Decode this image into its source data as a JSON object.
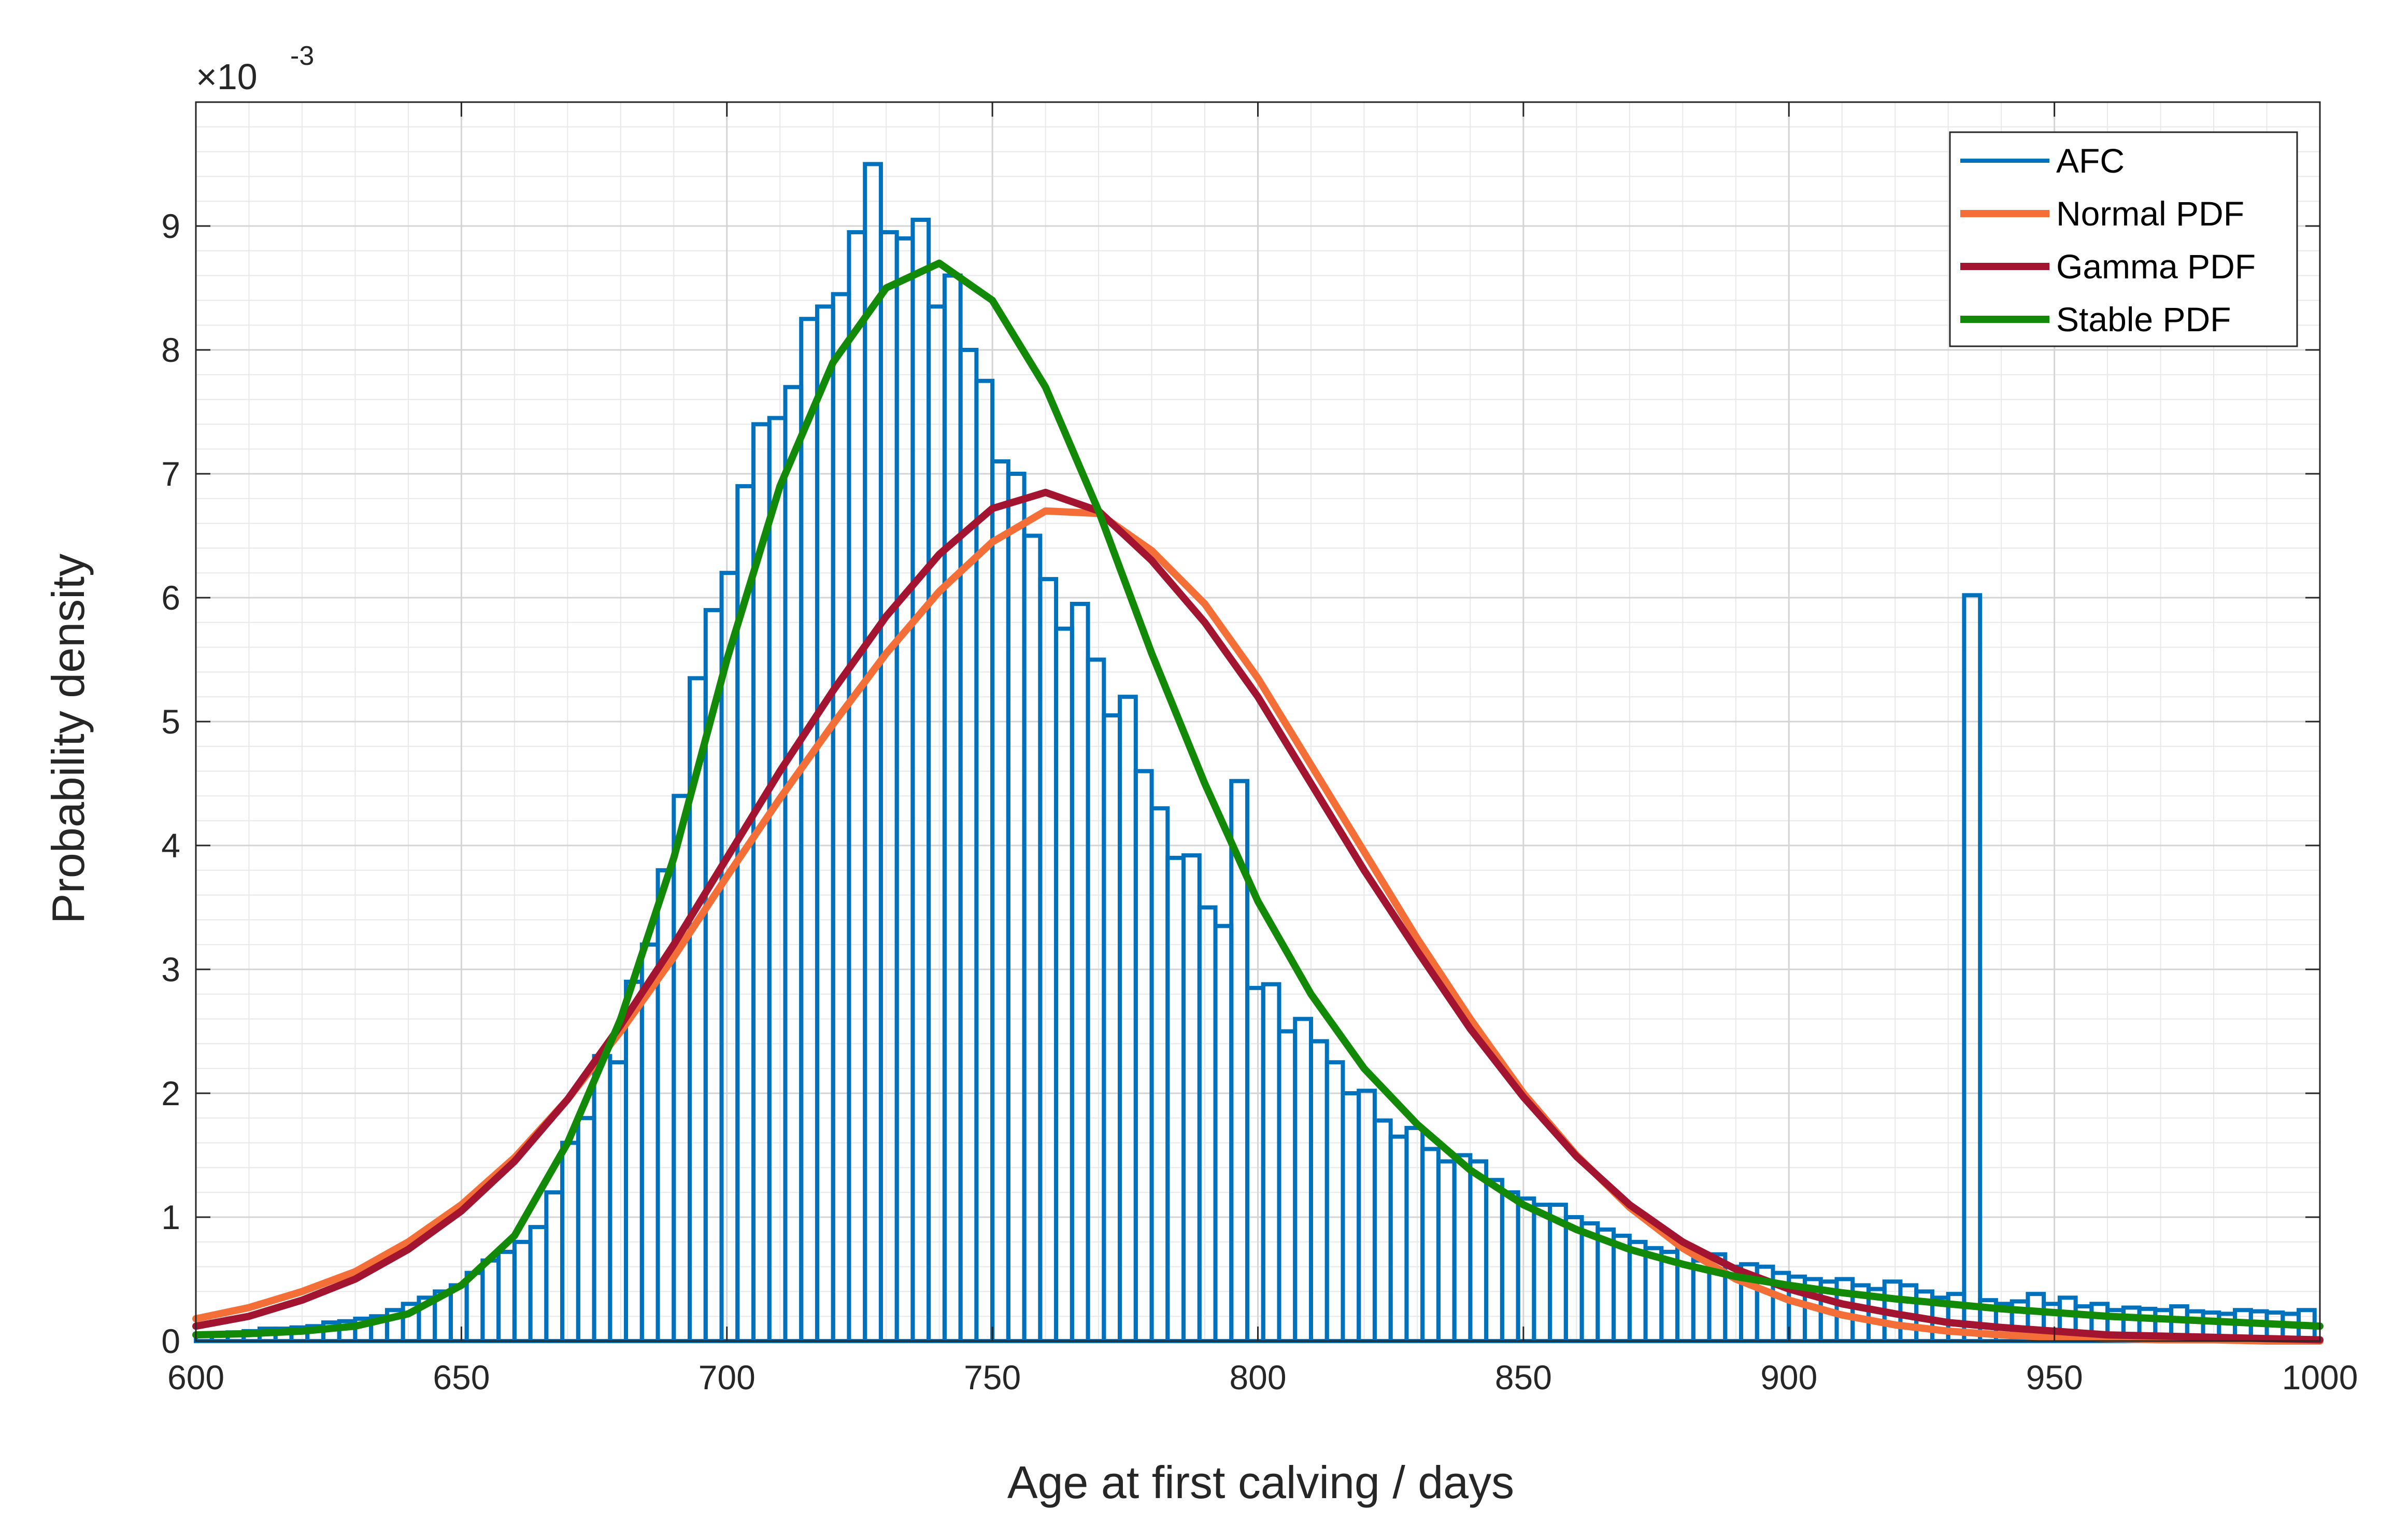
{
  "chart_data": {
    "type": "bar",
    "xlabel": "Age at first calving / days",
    "ylabel": "Probability density",
    "y_exponent": {
      "base": "×10",
      "power": "-3"
    },
    "xlim": [
      600,
      1000
    ],
    "ylim": [
      0,
      10
    ],
    "x_ticks": [
      600,
      650,
      700,
      750,
      800,
      850,
      900,
      950,
      1000
    ],
    "y_ticks": [
      0,
      1,
      2,
      3,
      4,
      5,
      6,
      7,
      8,
      9
    ],
    "grid": "major and minor",
    "legend_location": "top-right",
    "histogram": {
      "name": "AFC",
      "color": "#0072BD",
      "bin_start": 600,
      "bin_width": 3,
      "values": [
        0.05,
        0.06,
        0.07,
        0.08,
        0.1,
        0.1,
        0.11,
        0.12,
        0.15,
        0.16,
        0.18,
        0.2,
        0.25,
        0.3,
        0.35,
        0.4,
        0.45,
        0.55,
        0.65,
        0.72,
        0.8,
        0.92,
        1.2,
        1.6,
        1.8,
        2.3,
        2.25,
        2.9,
        3.2,
        3.8,
        4.4,
        5.35,
        5.9,
        6.2,
        6.9,
        7.4,
        7.45,
        7.7,
        8.25,
        8.35,
        8.45,
        8.95,
        9.5,
        8.95,
        8.9,
        9.05,
        8.35,
        8.6,
        8.0,
        7.75,
        7.1,
        7.0,
        6.5,
        6.15,
        5.75,
        5.95,
        5.5,
        5.05,
        5.2,
        4.6,
        4.3,
        3.9,
        3.92,
        3.5,
        3.35,
        4.52,
        2.85,
        2.88,
        2.5,
        2.6,
        2.42,
        2.25,
        2.0,
        2.02,
        1.78,
        1.65,
        1.72,
        1.55,
        1.45,
        1.5,
        1.45,
        1.3,
        1.2,
        1.15,
        1.1,
        1.1,
        1.0,
        0.95,
        0.9,
        0.85,
        0.8,
        0.75,
        0.72,
        0.75,
        0.65,
        0.7,
        0.6,
        0.62,
        0.6,
        0.55,
        0.52,
        0.5,
        0.48,
        0.5,
        0.45,
        0.42,
        0.48,
        0.45,
        0.4,
        0.35,
        0.38,
        6.02,
        0.33,
        0.3,
        0.32,
        0.38,
        0.3,
        0.35,
        0.28,
        0.3,
        0.25,
        0.27,
        0.26,
        0.25,
        0.28,
        0.24,
        0.23,
        0.22,
        0.25,
        0.24,
        0.23,
        0.22,
        0.25,
        0.22,
        0.21,
        0.23,
        0.21,
        0.2
      ]
    },
    "series": [
      {
        "name": "Normal PDF",
        "color": "#F46F38",
        "x": [
          600,
          610,
          620,
          630,
          640,
          650,
          660,
          670,
          680,
          690,
          700,
          710,
          720,
          730,
          740,
          750,
          760,
          770,
          780,
          790,
          800,
          810,
          820,
          830,
          840,
          850,
          860,
          870,
          880,
          890,
          900,
          910,
          920,
          930,
          940,
          950,
          960,
          970,
          980,
          990,
          1000
        ],
        "y": [
          0.18,
          0.27,
          0.4,
          0.56,
          0.8,
          1.1,
          1.48,
          1.95,
          2.5,
          3.1,
          3.75,
          4.38,
          4.98,
          5.55,
          6.05,
          6.45,
          6.7,
          6.68,
          6.38,
          5.95,
          5.35,
          4.65,
          3.95,
          3.25,
          2.6,
          2.0,
          1.5,
          1.08,
          0.75,
          0.5,
          0.33,
          0.21,
          0.13,
          0.08,
          0.05,
          0.03,
          0.02,
          0.01,
          0.01,
          0.0,
          0.0
        ]
      },
      {
        "name": "Gamma PDF",
        "color": "#A2142F",
        "x": [
          600,
          610,
          620,
          630,
          640,
          650,
          660,
          670,
          680,
          690,
          700,
          710,
          720,
          730,
          740,
          750,
          760,
          770,
          780,
          790,
          800,
          810,
          820,
          830,
          840,
          850,
          860,
          870,
          880,
          890,
          900,
          910,
          920,
          930,
          940,
          950,
          960,
          970,
          980,
          990,
          1000
        ],
        "y": [
          0.12,
          0.2,
          0.33,
          0.5,
          0.74,
          1.05,
          1.45,
          1.95,
          2.55,
          3.2,
          3.9,
          4.6,
          5.25,
          5.85,
          6.35,
          6.72,
          6.85,
          6.7,
          6.3,
          5.8,
          5.2,
          4.5,
          3.8,
          3.15,
          2.52,
          1.97,
          1.49,
          1.1,
          0.8,
          0.58,
          0.42,
          0.3,
          0.22,
          0.15,
          0.11,
          0.08,
          0.05,
          0.04,
          0.03,
          0.02,
          0.01
        ]
      },
      {
        "name": "Stable PDF",
        "color": "#138A07",
        "x": [
          600,
          610,
          620,
          630,
          640,
          650,
          660,
          670,
          680,
          690,
          700,
          710,
          720,
          730,
          740,
          750,
          760,
          770,
          780,
          790,
          800,
          810,
          820,
          830,
          840,
          850,
          860,
          870,
          880,
          890,
          900,
          910,
          920,
          930,
          940,
          950,
          960,
          970,
          980,
          990,
          1000
        ],
        "y": [
          0.05,
          0.06,
          0.08,
          0.12,
          0.22,
          0.45,
          0.85,
          1.6,
          2.6,
          3.9,
          5.5,
          6.9,
          7.9,
          8.5,
          8.7,
          8.4,
          7.7,
          6.7,
          5.55,
          4.5,
          3.55,
          2.8,
          2.2,
          1.75,
          1.38,
          1.1,
          0.9,
          0.74,
          0.62,
          0.52,
          0.45,
          0.39,
          0.34,
          0.3,
          0.26,
          0.23,
          0.2,
          0.18,
          0.16,
          0.14,
          0.12
        ]
      }
    ]
  }
}
